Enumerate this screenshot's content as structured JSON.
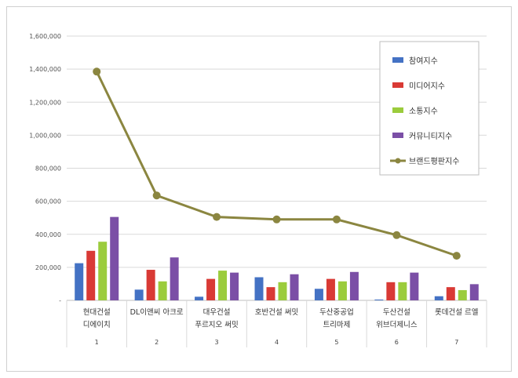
{
  "chart_data": {
    "type": "bar",
    "title": "",
    "xlabel": "",
    "ylabel": "",
    "ylim": [
      0,
      1600000
    ],
    "yticks": [
      "-",
      "200,000",
      "400,000",
      "600,000",
      "800,000",
      "1,000,000",
      "1,200,000",
      "1,400,000",
      "1,600,000"
    ],
    "ytick_values": [
      0,
      200000,
      400000,
      600000,
      800000,
      1000000,
      1200000,
      1400000,
      1600000
    ],
    "grid": true,
    "legend_position": "top-right",
    "categories": [
      {
        "lines": [
          "현대건설",
          "디에이치"
        ],
        "index": "1"
      },
      {
        "lines": [
          "DL이앤씨 아크로"
        ],
        "index": "2"
      },
      {
        "lines": [
          "대우건설",
          "푸르지오 써밋"
        ],
        "index": "3"
      },
      {
        "lines": [
          "호반건설 써밋"
        ],
        "index": "4"
      },
      {
        "lines": [
          "두산중공업",
          "트리마제"
        ],
        "index": "5"
      },
      {
        "lines": [
          "두산건설",
          "위브더제니스"
        ],
        "index": "6"
      },
      {
        "lines": [
          "롯데건설 르엘"
        ],
        "index": "7"
      }
    ],
    "series": [
      {
        "name": "참여지수",
        "kind": "bar",
        "color": "#4472c4",
        "values": [
          225000,
          65000,
          22000,
          140000,
          70000,
          5000,
          25000
        ]
      },
      {
        "name": "미디어지수",
        "kind": "bar",
        "color": "#d93a35",
        "values": [
          300000,
          185000,
          130000,
          80000,
          130000,
          110000,
          80000
        ]
      },
      {
        "name": "소통지수",
        "kind": "bar",
        "color": "#9bcc3c",
        "values": [
          355000,
          115000,
          180000,
          110000,
          115000,
          110000,
          62000
        ]
      },
      {
        "name": "커뮤니티지수",
        "kind": "bar",
        "color": "#7b4fa6",
        "values": [
          505000,
          260000,
          168000,
          158000,
          172000,
          168000,
          98000
        ]
      },
      {
        "name": "브랜드평판지수",
        "kind": "line",
        "color": "#8b8640",
        "values": [
          1385000,
          635000,
          505000,
          490000,
          490000,
          395000,
          270000
        ]
      }
    ]
  }
}
